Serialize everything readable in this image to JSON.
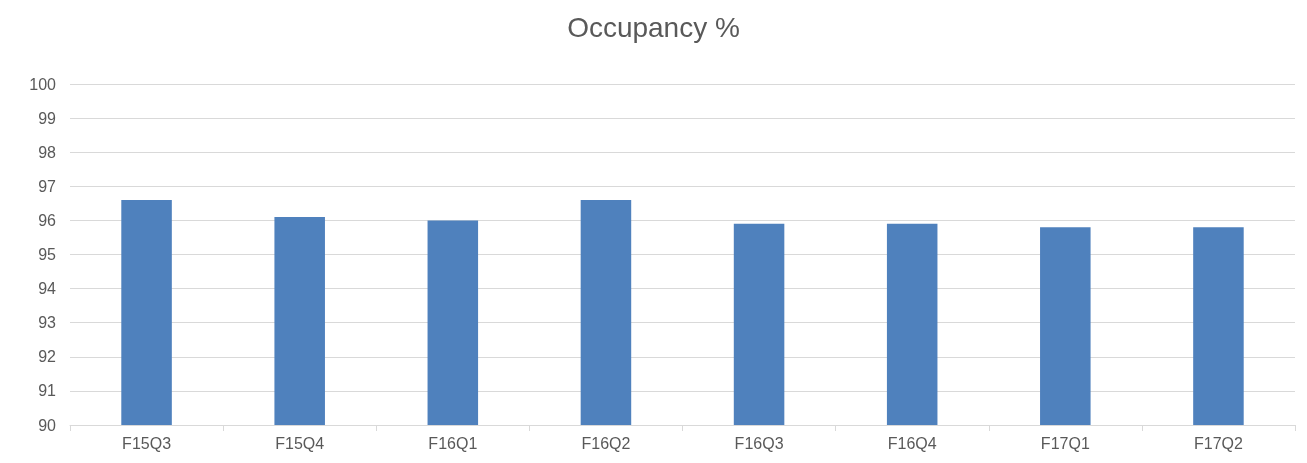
{
  "chart_data": {
    "type": "bar",
    "title": "Occupancy %",
    "categories": [
      "F15Q3",
      "F15Q4",
      "F16Q1",
      "F16Q2",
      "F16Q3",
      "F16Q4",
      "F17Q1",
      "F17Q2"
    ],
    "values": [
      96.6,
      96.1,
      96.0,
      96.6,
      95.9,
      95.9,
      95.8,
      95.8
    ],
    "color": "#4f81bd",
    "ylim": [
      90,
      100
    ],
    "yticks": [
      90,
      91,
      92,
      93,
      94,
      95,
      96,
      97,
      98,
      99,
      100
    ],
    "grid": "y"
  }
}
